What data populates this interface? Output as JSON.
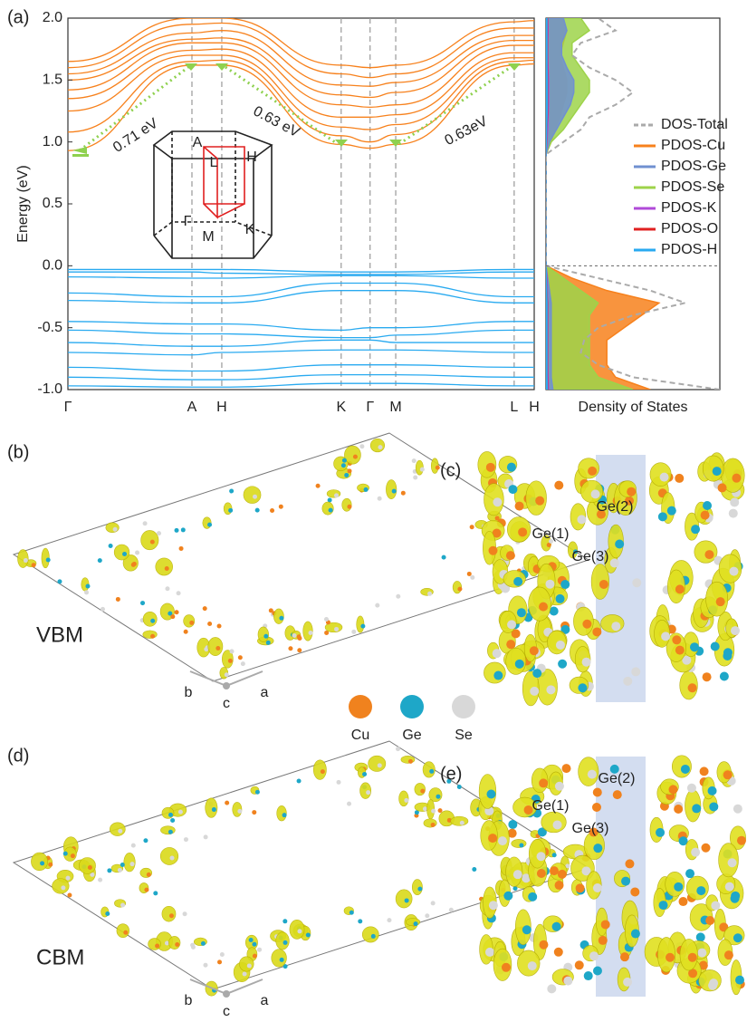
{
  "chart_data": [
    {
      "type": "band",
      "ylabel": "Energy (eV)",
      "categories": [
        "Γ",
        "A",
        "H",
        "K",
        "Γ",
        "M",
        "L",
        "H"
      ],
      "ylim": [
        -1,
        2
      ],
      "yticks": [
        {
          "value": -1,
          "label": "-1.0"
        },
        -0.5,
        {
          "value": 0,
          "label": "0.0"
        },
        0.5,
        {
          "value": 1,
          "label": "1.0"
        },
        1.5,
        {
          "value": 2,
          "label": "2.0"
        }
      ],
      "annotations": [
        "0.71 eV",
        "0.63 eV",
        "0.63eV"
      ],
      "series": [
        {
          "color": "#f7811c",
          "values": [
            0.93,
            1.62,
            1.62,
            0.98,
            0.95,
            0.98,
            1.62,
            1.63
          ]
        },
        {
          "color": "#f7811c",
          "values": [
            1.08,
            1.65,
            1.66,
            1.05,
            1.0,
            1.06,
            1.65,
            1.66
          ]
        },
        {
          "color": "#f7811c",
          "values": [
            1.25,
            1.7,
            1.7,
            1.12,
            1.1,
            1.14,
            1.68,
            1.68
          ]
        },
        {
          "color": "#f7811c",
          "values": [
            1.35,
            1.74,
            1.75,
            1.2,
            1.2,
            1.22,
            1.72,
            1.72
          ]
        },
        {
          "color": "#f7811c",
          "values": [
            1.42,
            1.8,
            1.8,
            1.3,
            1.28,
            1.3,
            1.78,
            1.78
          ]
        },
        {
          "color": "#f7811c",
          "values": [
            1.5,
            1.83,
            1.84,
            1.38,
            1.36,
            1.4,
            1.82,
            1.82
          ]
        },
        {
          "color": "#f7811c",
          "values": [
            1.55,
            1.88,
            1.9,
            1.46,
            1.45,
            1.48,
            1.86,
            1.86
          ]
        },
        {
          "color": "#f7811c",
          "values": [
            1.6,
            1.95,
            1.96,
            1.55,
            1.52,
            1.55,
            1.92,
            1.92
          ]
        },
        {
          "color": "#f7811c",
          "values": [
            1.65,
            2.0,
            2.0,
            1.62,
            1.6,
            1.62,
            1.97,
            1.98
          ]
        },
        {
          "color": "#29aaf0",
          "values": [
            -0.03,
            -0.03,
            -0.03,
            -0.05,
            -0.05,
            -0.05,
            -0.03,
            -0.03
          ]
        },
        {
          "color": "#29aaf0",
          "values": [
            -0.05,
            -0.05,
            -0.06,
            -0.07,
            -0.07,
            -0.07,
            -0.05,
            -0.05
          ]
        },
        {
          "color": "#29aaf0",
          "values": [
            -0.09,
            -0.1,
            -0.1,
            -0.08,
            -0.08,
            -0.08,
            -0.1,
            -0.1
          ]
        },
        {
          "color": "#29aaf0",
          "values": [
            -0.22,
            -0.25,
            -0.25,
            -0.14,
            -0.14,
            -0.14,
            -0.25,
            -0.25
          ]
        },
        {
          "color": "#29aaf0",
          "values": [
            -0.28,
            -0.3,
            -0.3,
            -0.2,
            -0.2,
            -0.2,
            -0.3,
            -0.3
          ]
        },
        {
          "color": "#29aaf0",
          "values": [
            -0.45,
            -0.47,
            -0.47,
            -0.52,
            -0.5,
            -0.5,
            -0.45,
            -0.45
          ]
        },
        {
          "color": "#29aaf0",
          "values": [
            -0.52,
            -0.55,
            -0.55,
            -0.58,
            -0.58,
            -0.56,
            -0.52,
            -0.52
          ]
        },
        {
          "color": "#29aaf0",
          "values": [
            -0.62,
            -0.65,
            -0.65,
            -0.6,
            -0.6,
            -0.62,
            -0.62,
            -0.62
          ]
        },
        {
          "color": "#29aaf0",
          "values": [
            -0.7,
            -0.72,
            -0.7,
            -0.68,
            -0.68,
            -0.68,
            -0.7,
            -0.7
          ]
        },
        {
          "color": "#29aaf0",
          "values": [
            -0.82,
            -0.85,
            -0.85,
            -0.8,
            -0.8,
            -0.8,
            -0.82,
            -0.82
          ]
        },
        {
          "color": "#29aaf0",
          "values": [
            -0.9,
            -0.92,
            -0.92,
            -0.88,
            -0.88,
            -0.88,
            -0.9,
            -0.9
          ]
        },
        {
          "color": "#29aaf0",
          "values": [
            -0.97,
            -0.98,
            -0.98,
            -0.95,
            -0.95,
            -0.95,
            -0.97,
            -0.97
          ]
        }
      ]
    },
    {
      "type": "dos",
      "xlabel": "Density of States",
      "xlim": [
        -1,
        2
      ],
      "ylim": [
        0,
        10
      ],
      "x": [
        -1.0,
        -0.9,
        -0.8,
        -0.7,
        -0.6,
        -0.5,
        -0.4,
        -0.3,
        -0.2,
        -0.1,
        0.0,
        0.1,
        0.2,
        0.3,
        0.4,
        0.5,
        0.6,
        0.7,
        0.8,
        0.9,
        1.0,
        1.1,
        1.2,
        1.3,
        1.4,
        1.5,
        1.6,
        1.7,
        1.8,
        1.9,
        2.0
      ],
      "series": [
        {
          "name": "PDOS-Cu",
          "color": "#f7811c",
          "values": [
            6,
            4,
            3.5,
            3.5,
            3.5,
            4.5,
            5.5,
            6.5,
            3.5,
            1.5,
            0,
            0,
            0,
            0,
            0,
            0,
            0,
            0,
            0,
            0,
            0.3,
            0.5,
            0.8,
            1,
            1.2,
            1.2,
            1,
            0.8,
            1,
            1.2,
            1
          ]
        },
        {
          "name": "PDOS-Se",
          "color": "#9dd34a",
          "values": [
            5,
            3,
            2.5,
            2.5,
            2.5,
            2.5,
            2.5,
            3,
            2,
            1,
            0,
            0,
            0,
            0,
            0,
            0,
            0,
            0,
            0,
            0,
            0.3,
            1,
            1.5,
            2,
            2.5,
            2.5,
            2,
            1.5,
            1.5,
            2.5,
            2
          ]
        },
        {
          "name": "PDOS-Ge",
          "color": "#7090d0",
          "values": [
            0.4,
            0.3,
            0.3,
            0.3,
            0.3,
            0.3,
            0.3,
            0.3,
            0.2,
            0.1,
            0,
            0,
            0,
            0,
            0,
            0,
            0,
            0,
            0,
            0,
            0.2,
            0.6,
            1,
            1.4,
            1.6,
            1.6,
            1.2,
            0.9,
            0.9,
            1.2,
            1
          ]
        },
        {
          "name": "PDOS-K",
          "color": "#b04ad8",
          "values": [
            0.15,
            0.12,
            0.1,
            0.1,
            0.1,
            0.1,
            0.1,
            0.1,
            0.08,
            0.05,
            0,
            0,
            0,
            0,
            0,
            0,
            0,
            0,
            0,
            0,
            0.05,
            0.1,
            0.12,
            0.15,
            0.15,
            0.15,
            0.12,
            0.1,
            0.1,
            0.12,
            0.1
          ]
        },
        {
          "name": "PDOS-O",
          "color": "#e02020",
          "values": [
            0.1,
            0.08,
            0.08,
            0.08,
            0.08,
            0.08,
            0.08,
            0.08,
            0.05,
            0.03,
            0,
            0,
            0,
            0,
            0,
            0,
            0,
            0,
            0,
            0,
            0.03,
            0.05,
            0.08,
            0.1,
            0.1,
            0.1,
            0.08,
            0.08,
            0.08,
            0.08,
            0.08
          ]
        },
        {
          "name": "PDOS-H",
          "color": "#29aaf0",
          "values": [
            0.08,
            0.06,
            0.06,
            0.06,
            0.06,
            0.06,
            0.06,
            0.06,
            0.04,
            0.02,
            0,
            0,
            0,
            0,
            0,
            0,
            0,
            0,
            0,
            0,
            0.02,
            0.04,
            0.06,
            0.08,
            0.08,
            0.08,
            0.06,
            0.06,
            0.06,
            0.06,
            0.06
          ]
        },
        {
          "name": "DOS-Total",
          "color": "#aaaaaa",
          "linestyle": "dashed",
          "values": [
            10,
            5,
            3,
            2,
            2.2,
            3,
            5,
            8,
            6,
            3,
            0,
            0,
            0,
            0,
            0,
            0,
            0,
            0,
            0,
            0,
            1,
            2,
            2.5,
            4,
            5,
            4,
            2.5,
            1.5,
            2,
            4,
            3
          ]
        }
      ]
    }
  ],
  "panel_a": {
    "label": "(a)",
    "inset_labels": [
      "A",
      "L",
      "H",
      "Γ",
      "M",
      "K"
    ]
  },
  "panel_b": {
    "label": "(b)",
    "state": "VBM",
    "axes": [
      "b",
      "a",
      "c"
    ]
  },
  "atom_legend": [
    "Cu",
    "Ge",
    "Se"
  ],
  "panel_c": {
    "label": "(c)",
    "atoms": [
      "Ge(2)",
      "Ge(1)",
      "Ge(3)"
    ]
  },
  "panel_d": {
    "label": "(d)",
    "state": "CBM",
    "axes": [
      "b",
      "a",
      "c"
    ]
  },
  "panel_e": {
    "label": "(e)",
    "atoms": [
      "Ge(2)",
      "Ge(1)",
      "Ge(3)"
    ]
  }
}
